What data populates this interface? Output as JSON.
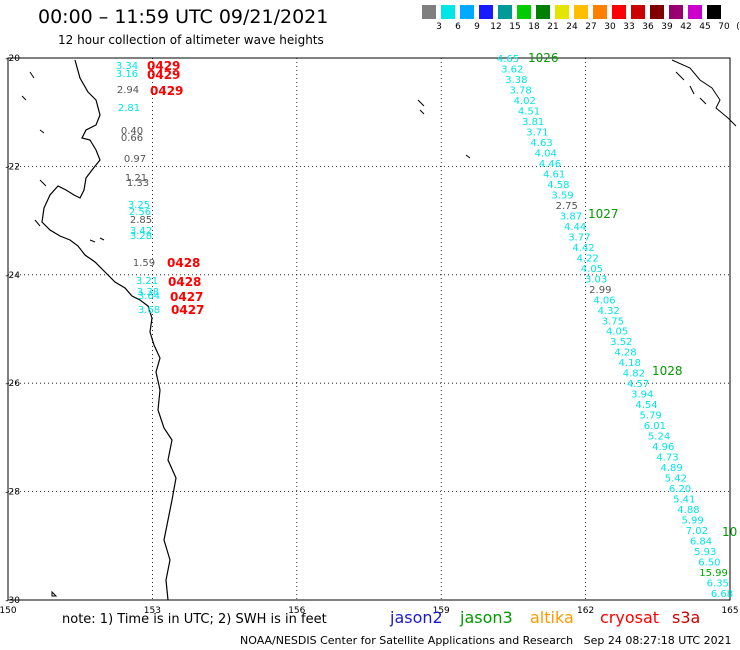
{
  "header": {
    "title": "00:00 – 11:59 UTC 09/21/2021",
    "subtitle": "12 hour collection of altimeter wave heights"
  },
  "legend": {
    "colors": [
      "#7f7f7f",
      "#00e5e5",
      "#00aaff",
      "#1a1aff",
      "#009999",
      "#00cc00",
      "#007f00",
      "#e5e500",
      "#ffbf00",
      "#ff7f00",
      "#ff0000",
      "#cc0000",
      "#800000",
      "#99006f",
      "#cc00cc",
      "#000000"
    ],
    "labels": [
      "3",
      "6",
      "9",
      "12",
      "15",
      "18",
      "21",
      "24",
      "27",
      "30",
      "33",
      "36",
      "39",
      "42",
      "45",
      "70",
      "(ft)"
    ]
  },
  "map": {
    "lat_ticks": [
      "-20",
      "-22",
      "-24",
      "-26",
      "-28",
      "-30"
    ],
    "lon_ticks": [
      "150",
      "153",
      "156",
      "159",
      "162",
      "165"
    ],
    "lat_range": [
      -30,
      -20
    ],
    "lon_range": [
      150,
      165
    ]
  },
  "track_east": {
    "color": "#00e5e5",
    "values": [
      "4.65",
      "3.62",
      "3.38",
      "3.78",
      "4.02",
      "4.51",
      "3.81",
      "3.71",
      "4.63",
      "4.04",
      "4.46",
      "4.61",
      "4.58",
      "3.59",
      "2.75",
      "3.87",
      "4.44",
      "3.77",
      "4.42",
      "4.22",
      "4.05",
      "3.03",
      "2.99",
      "4.06",
      "4.32",
      "3.75",
      "4.05",
      "3.52",
      "4.28",
      "4.18",
      "4.82",
      "4.57",
      "3.94",
      "4.54",
      "5.79",
      "6.01",
      "5.24",
      "4.96",
      "4.73",
      "4.89",
      "5.42",
      "6.20",
      "5.41",
      "4.88",
      "5.99",
      "7.02",
      "6.84",
      "5.93",
      "6.50",
      "15.99",
      "6.35",
      "6.68"
    ],
    "time_labels": [
      {
        "text": "1026",
        "color": "#009900"
      },
      {
        "text": "1027",
        "color": "#009900"
      },
      {
        "text": "1028",
        "color": "#009900"
      },
      {
        "text": "10",
        "color": "#009900"
      }
    ]
  },
  "track_west": {
    "values": [
      "3.34",
      "3.16",
      "2.94",
      "2.81",
      "0.40",
      "0.66",
      "0.97",
      "1.21",
      "1.33",
      "3.25",
      "2.56",
      "2.85",
      "3.42",
      "3.28",
      "1.59",
      "3.21",
      "3.38",
      "3.64",
      "3.68"
    ],
    "time_labels": [
      "0429",
      "0429",
      "0429",
      "0428",
      "0428",
      "0427",
      "0427"
    ],
    "time_color": "#ff0000"
  },
  "footer": {
    "note": "note: 1) Time is in UTC; 2) SWH is in feet",
    "missions": [
      {
        "name": "jason2",
        "color": "#1a1acc"
      },
      {
        "name": "jason3",
        "color": "#009900"
      },
      {
        "name": "altika",
        "color": "#ff9900"
      },
      {
        "name": "cryosat",
        "color": "#ff0000"
      },
      {
        "name": "s3a",
        "color": "#cc0000"
      }
    ],
    "credit": "NOAA/NESDIS Center for Satellite Applications and Research",
    "timestamp": "Sep 24 08:27:18 UTC 2021"
  }
}
